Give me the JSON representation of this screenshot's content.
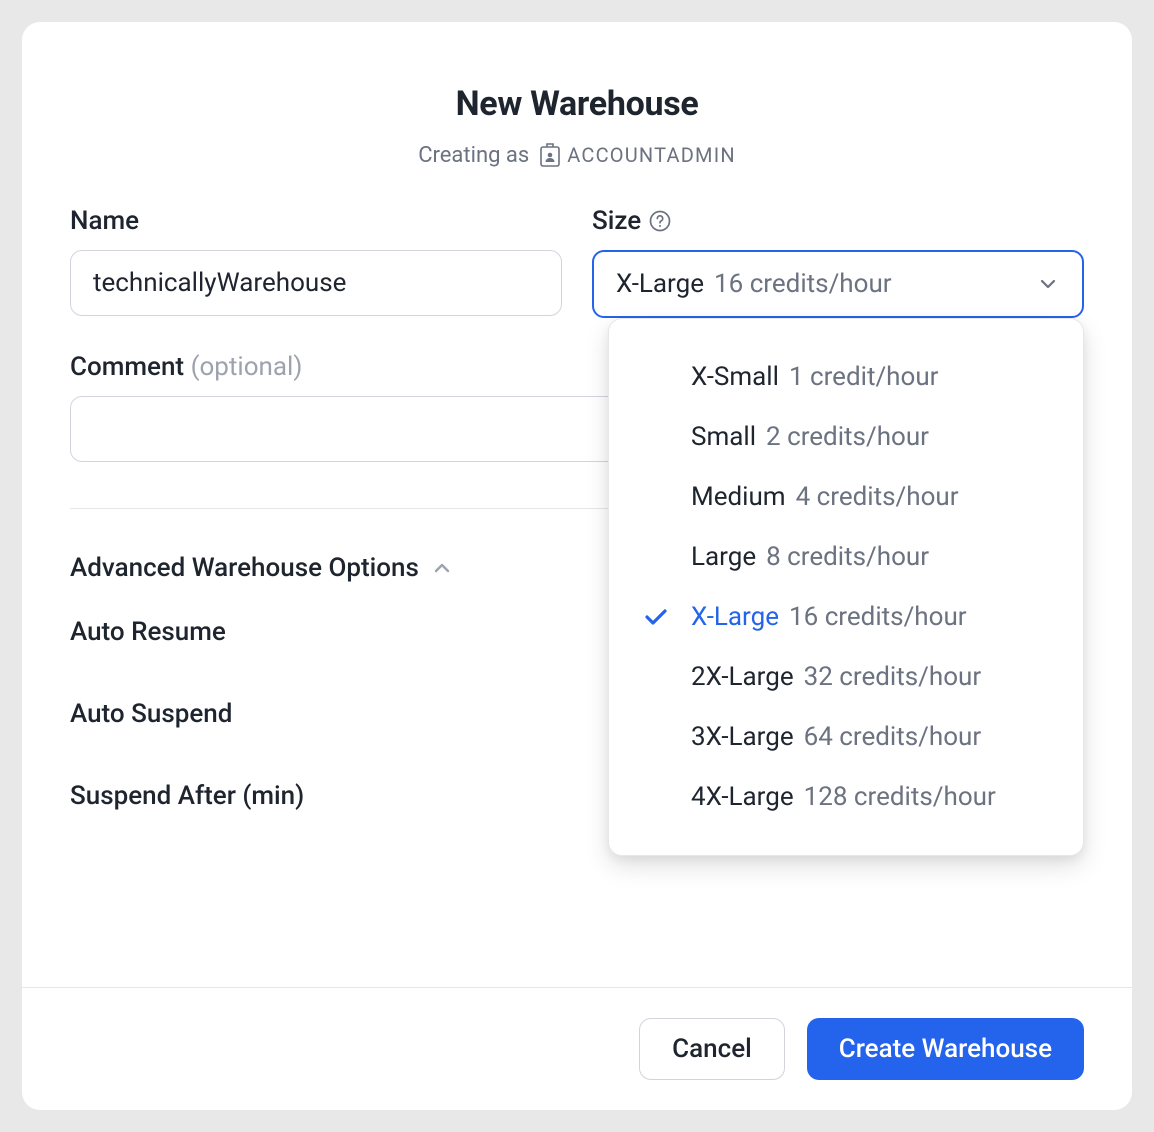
{
  "colors": {
    "primary": "#2463eb",
    "text": "#1e252f",
    "text_muted": "#6b7280",
    "text_placeholder": "#9ca3af",
    "border": "#d1d5db",
    "divider": "#e5e7eb",
    "background": "#e8e8e9",
    "modal_bg": "#ffffff"
  },
  "header": {
    "title": "New Warehouse",
    "subtitle_prefix": "Creating as",
    "role": "ACCOUNTADMIN"
  },
  "form": {
    "name": {
      "label": "Name",
      "value": "technicallyWarehouse"
    },
    "size": {
      "label": "Size",
      "selected_label": "X-Large",
      "selected_sublabel": "16 credits/hour",
      "options": [
        {
          "label": "X-Small",
          "sublabel": "1 credit/hour",
          "selected": false
        },
        {
          "label": "Small",
          "sublabel": "2 credits/hour",
          "selected": false
        },
        {
          "label": "Medium",
          "sublabel": "4 credits/hour",
          "selected": false
        },
        {
          "label": "Large",
          "sublabel": "8 credits/hour",
          "selected": false
        },
        {
          "label": "X-Large",
          "sublabel": "16 credits/hour",
          "selected": true
        },
        {
          "label": "2X-Large",
          "sublabel": "32 credits/hour",
          "selected": false
        },
        {
          "label": "3X-Large",
          "sublabel": "64 credits/hour",
          "selected": false
        },
        {
          "label": "4X-Large",
          "sublabel": "128 credits/hour",
          "selected": false
        }
      ]
    },
    "comment": {
      "label": "Comment",
      "optional_text": "(optional)",
      "value": ""
    }
  },
  "advanced": {
    "title": "Advanced Warehouse Options",
    "expanded": true,
    "options": {
      "auto_resume": "Auto Resume",
      "auto_suspend": "Auto Suspend",
      "suspend_after": "Suspend After (min)"
    }
  },
  "footer": {
    "cancel": "Cancel",
    "create": "Create Warehouse"
  }
}
